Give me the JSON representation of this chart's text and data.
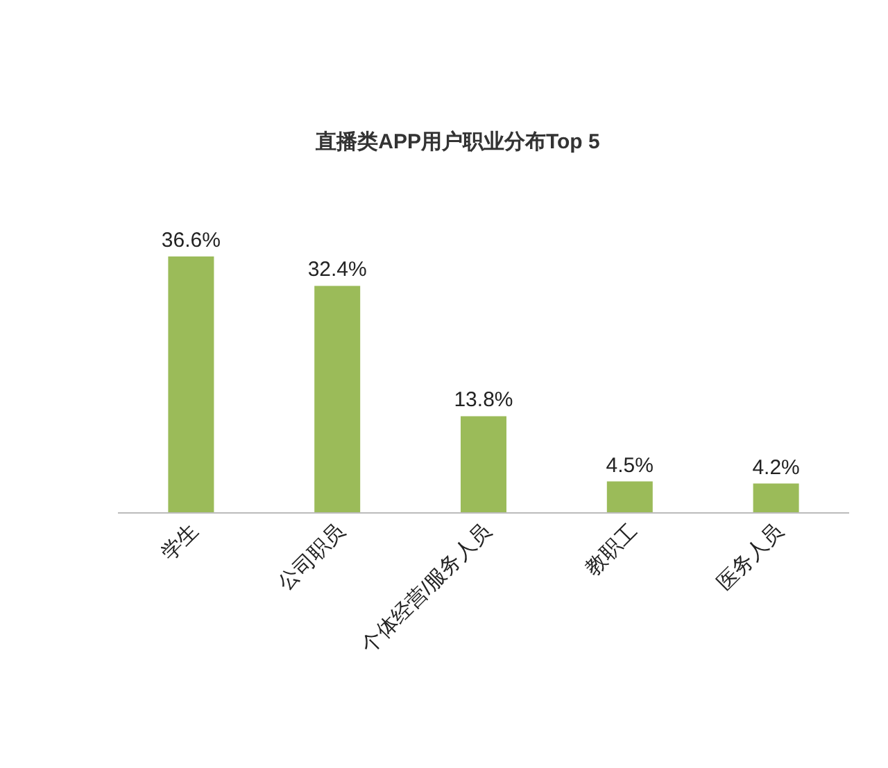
{
  "chart_data": {
    "type": "bar",
    "title": "直播类APP用户职业分布Top 5",
    "categories": [
      "学生",
      "公司职员",
      "个体经营/服务人员",
      "教职工",
      "医务人员"
    ],
    "values": [
      36.6,
      32.4,
      13.8,
      4.5,
      4.2
    ],
    "value_labels": [
      "36.6%",
      "32.4%",
      "13.8%",
      "4.5%",
      "4.2%"
    ],
    "color": "#9bbb59"
  }
}
